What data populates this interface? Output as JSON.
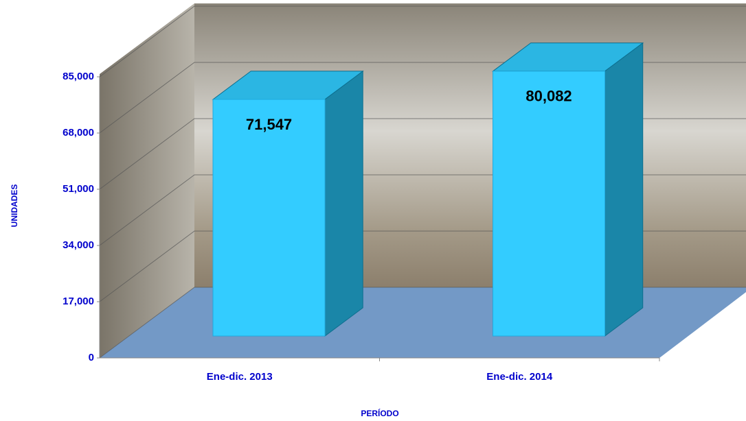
{
  "chart_data": {
    "type": "bar3d",
    "categories": [
      "Ene-dic. 2013",
      "Ene-dic. 2014"
    ],
    "values": [
      71547,
      80082
    ],
    "value_labels": [
      "71,547",
      "80,082"
    ],
    "color": "#33ccff",
    "ylim": [
      0,
      85000
    ],
    "yticks": [
      0,
      {
        "value": 17000,
        "label": "17,000"
      },
      {
        "value": 34000,
        "label": "34,000"
      },
      {
        "value": 51000,
        "label": "51,000"
      },
      {
        "value": 68000,
        "label": "68,000"
      },
      {
        "value": 85000,
        "label": "85,000"
      }
    ],
    "grid": true,
    "ylabel": "UNIDADES",
    "xlabel": "PERÍODO"
  }
}
